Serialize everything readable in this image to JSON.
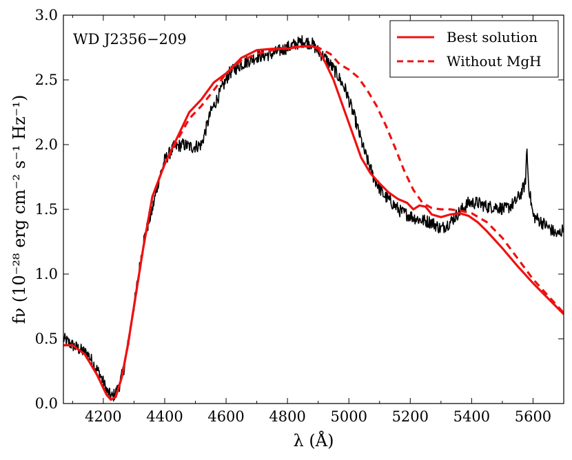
{
  "chart_data": {
    "type": "line",
    "annotation": "WD J2356−209",
    "xlabel": "λ (Å)",
    "ylabel": "fν (10⁻²⁸ erg cm⁻² s⁻¹ Hz⁻¹)",
    "xlim": [
      4070,
      5700
    ],
    "ylim": [
      0.0,
      3.0
    ],
    "xticks": [
      4200,
      4400,
      4600,
      4800,
      5000,
      5200,
      5400,
      5600
    ],
    "yticks": [
      0.0,
      0.5,
      1.0,
      1.5,
      2.0,
      2.5,
      3.0
    ],
    "xtick_labels": [
      "4200",
      "4400",
      "4600",
      "4800",
      "5000",
      "5200",
      "5400",
      "5600"
    ],
    "ytick_labels": [
      "0.0",
      "0.5",
      "1.0",
      "1.5",
      "2.0",
      "2.5",
      "3.0"
    ],
    "legend_position": "top-right",
    "series": [
      {
        "name": "Observed spectrum",
        "color": "#000000",
        "style": "solid",
        "in_legend": false,
        "noise": 0.05,
        "x": [
          4070,
          4100,
          4150,
          4190,
          4215,
          4230,
          4250,
          4270,
          4300,
          4330,
          4360,
          4380,
          4400,
          4430,
          4460,
          4490,
          4520,
          4550,
          4580,
          4610,
          4650,
          4700,
          4750,
          4800,
          4850,
          4880,
          4900,
          4930,
          4960,
          4990,
          5020,
          5050,
          5080,
          5110,
          5140,
          5170,
          5200,
          5230,
          5270,
          5300,
          5330,
          5360,
          5390,
          5420,
          5450,
          5480,
          5510,
          5540,
          5560,
          5575,
          5580,
          5585,
          5600,
          5640,
          5680,
          5700
        ],
        "y": [
          0.5,
          0.45,
          0.38,
          0.22,
          0.08,
          0.05,
          0.12,
          0.3,
          0.75,
          1.25,
          1.5,
          1.72,
          1.88,
          1.98,
          2.0,
          1.98,
          2.0,
          2.25,
          2.4,
          2.55,
          2.62,
          2.68,
          2.7,
          2.75,
          2.8,
          2.78,
          2.72,
          2.65,
          2.55,
          2.42,
          2.2,
          1.95,
          1.75,
          1.62,
          1.55,
          1.48,
          1.45,
          1.42,
          1.4,
          1.35,
          1.4,
          1.48,
          1.55,
          1.55,
          1.52,
          1.52,
          1.5,
          1.55,
          1.62,
          1.7,
          1.98,
          1.7,
          1.45,
          1.38,
          1.3,
          1.35
        ]
      },
      {
        "name": "Best solution",
        "color": "#ee1111",
        "style": "solid",
        "in_legend": true,
        "x": [
          4070,
          4100,
          4140,
          4180,
          4210,
          4225,
          4240,
          4260,
          4280,
          4300,
          4330,
          4360,
          4400,
          4440,
          4480,
          4520,
          4560,
          4600,
          4650,
          4700,
          4750,
          4800,
          4850,
          4880,
          4900,
          4920,
          4950,
          4980,
          5010,
          5040,
          5070,
          5100,
          5130,
          5160,
          5190,
          5210,
          5230,
          5250,
          5270,
          5300,
          5330,
          5360,
          5390,
          5420,
          5450,
          5500,
          5550,
          5600,
          5650,
          5700
        ],
        "y": [
          0.45,
          0.45,
          0.38,
          0.22,
          0.07,
          0.03,
          0.05,
          0.2,
          0.45,
          0.75,
          1.2,
          1.6,
          1.85,
          2.05,
          2.25,
          2.35,
          2.48,
          2.55,
          2.67,
          2.73,
          2.74,
          2.74,
          2.76,
          2.76,
          2.74,
          2.65,
          2.5,
          2.3,
          2.1,
          1.9,
          1.78,
          1.7,
          1.63,
          1.58,
          1.55,
          1.5,
          1.53,
          1.52,
          1.46,
          1.44,
          1.46,
          1.47,
          1.45,
          1.4,
          1.33,
          1.2,
          1.06,
          0.93,
          0.81,
          0.69
        ]
      },
      {
        "name": "Without MgH",
        "color": "#ee1111",
        "style": "dashed",
        "in_legend": true,
        "x": [
          4070,
          4100,
          4140,
          4180,
          4210,
          4225,
          4240,
          4260,
          4280,
          4300,
          4330,
          4360,
          4400,
          4440,
          4480,
          4520,
          4560,
          4600,
          4650,
          4700,
          4750,
          4800,
          4850,
          4900,
          4940,
          4970,
          5000,
          5030,
          5060,
          5090,
          5120,
          5150,
          5180,
          5210,
          5240,
          5270,
          5300,
          5330,
          5360,
          5400,
          5450,
          5500,
          5550,
          5600,
          5650,
          5700
        ],
        "y": [
          0.45,
          0.45,
          0.38,
          0.22,
          0.07,
          0.03,
          0.05,
          0.2,
          0.45,
          0.75,
          1.2,
          1.6,
          1.85,
          2.03,
          2.2,
          2.3,
          2.42,
          2.55,
          2.65,
          2.7,
          2.73,
          2.75,
          2.76,
          2.75,
          2.7,
          2.62,
          2.58,
          2.52,
          2.42,
          2.3,
          2.15,
          1.98,
          1.8,
          1.65,
          1.55,
          1.51,
          1.5,
          1.5,
          1.49,
          1.47,
          1.4,
          1.28,
          1.12,
          0.96,
          0.83,
          0.7
        ]
      }
    ]
  }
}
